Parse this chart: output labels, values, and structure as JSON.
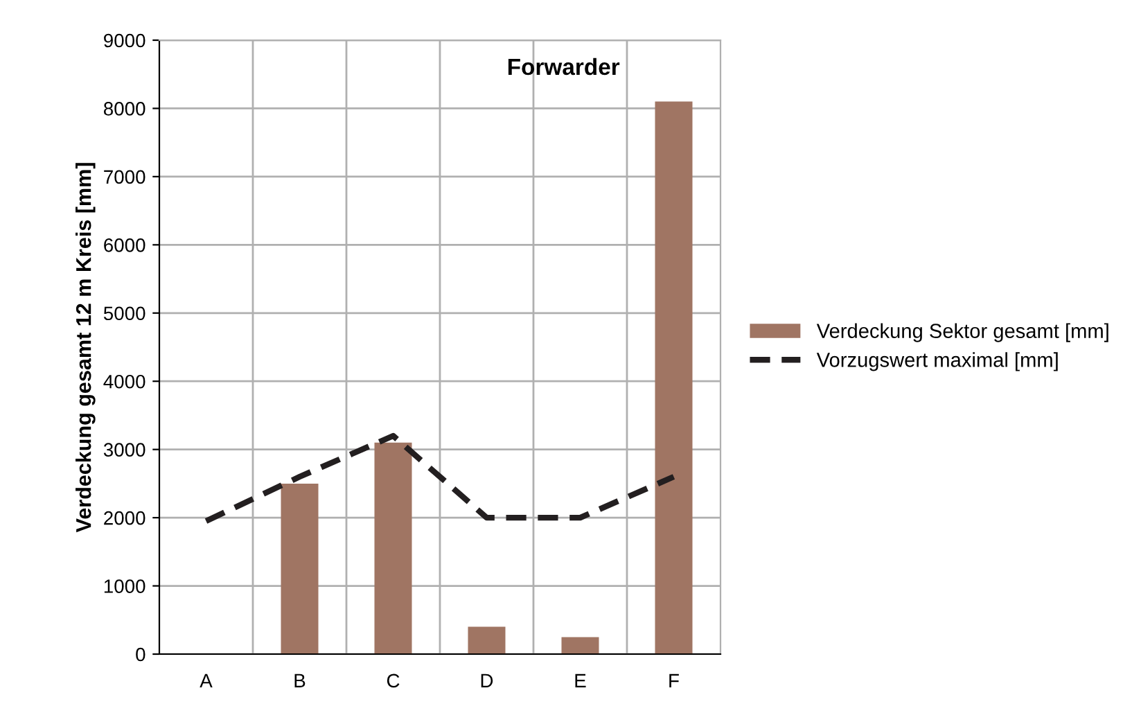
{
  "chart_data": {
    "type": "bar",
    "title": "Forwarder",
    "ylabel": "Verdeckung gesamt 12 m Kreis [mm]",
    "categories": [
      "A",
      "B",
      "C",
      "D",
      "E",
      "F"
    ],
    "series": [
      {
        "name": "Verdeckung Sektor gesamt [mm]",
        "color": "#a07563",
        "values": [
          0,
          2500,
          3100,
          400,
          250,
          8100
        ]
      },
      {
        "name": "Vorzugswert maximal [mm]",
        "type": "line",
        "color": "#231f20",
        "line_style": "dashed",
        "marker": "none",
        "values": [
          1950,
          2600,
          3200,
          2000,
          2000,
          2600
        ]
      }
    ],
    "ylim": [
      0,
      9000
    ],
    "yticks": [
      0,
      1000,
      2000,
      3000,
      4000,
      5000,
      6000,
      7000,
      8000,
      9000
    ],
    "grid": true,
    "legend": "right"
  }
}
